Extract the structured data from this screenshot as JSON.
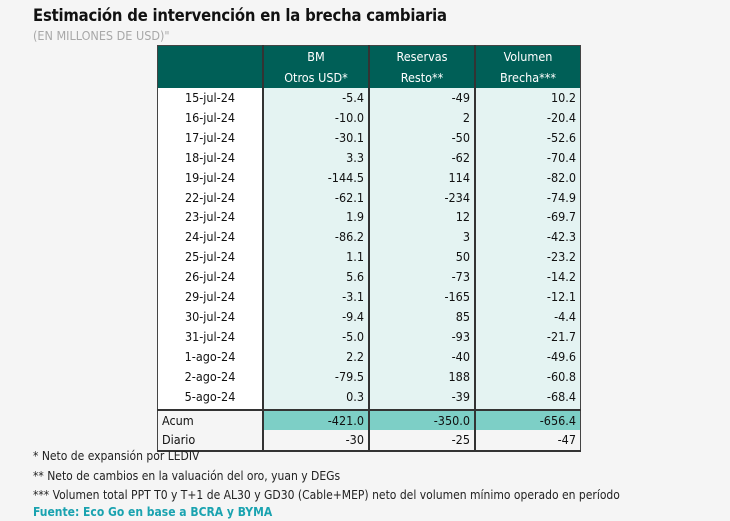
{
  "title": "Estimación de intervención en la brecha cambiaria",
  "subtitle": "(EN MILLONES DE USD)\"",
  "table": {
    "headers": [
      [
        "",
        ""
      ],
      [
        "BM",
        "Otros USD*"
      ],
      [
        "Reservas",
        "Resto**"
      ],
      [
        "Volumen",
        "Brecha***"
      ]
    ],
    "rows": [
      [
        "15-jul-24",
        "-5.4",
        "-49",
        "10.2"
      ],
      [
        "16-jul-24",
        "-10.0",
        "2",
        "-20.4"
      ],
      [
        "17-jul-24",
        "-30.1",
        "-50",
        "-52.6"
      ],
      [
        "18-jul-24",
        "3.3",
        "-62",
        "-70.4"
      ],
      [
        "19-jul-24",
        "-144.5",
        "114",
        "-82.0"
      ],
      [
        "22-jul-24",
        "-62.1",
        "-234",
        "-74.9"
      ],
      [
        "23-jul-24",
        "1.9",
        "12",
        "-69.7"
      ],
      [
        "24-jul-24",
        "-86.2",
        "3",
        "-42.3"
      ],
      [
        "25-jul-24",
        "1.1",
        "50",
        "-23.2"
      ],
      [
        "26-jul-24",
        "5.6",
        "-73",
        "-14.2"
      ],
      [
        "29-jul-24",
        "-3.1",
        "-165",
        "-12.1"
      ],
      [
        "30-jul-24",
        "-9.4",
        "85",
        "-4.4"
      ],
      [
        "31-jul-24",
        "-5.0",
        "-93",
        "-21.7"
      ],
      [
        "1-ago-24",
        "2.2",
        "-40",
        "-49.6"
      ],
      [
        "2-ago-24",
        "-79.5",
        "188",
        "-60.8"
      ],
      [
        "5-ago-24",
        "0.3",
        "-39",
        "-68.4"
      ]
    ],
    "acum": [
      "Acum",
      "-421.0",
      "-350.0",
      "-656.4"
    ],
    "diario": [
      "Diario",
      "-30",
      "-25",
      "-47"
    ]
  },
  "notes": [
    "* Neto de expansión por LEDIV",
    "** Neto de cambios en la valuación del oro, yuan y DEGs",
    "*** Volumen total PPT T0 y T+1 de AL30 y GD30 (Cable+MEP) neto del volumen mínimo operado en período"
  ],
  "source": "Fuente: Eco Go en base a BCRA y BYMA",
  "colors": {
    "header": "#005f57",
    "cell": "#e4f3f2",
    "acum": "#7dcfc6",
    "source": "#1aa3b0"
  }
}
